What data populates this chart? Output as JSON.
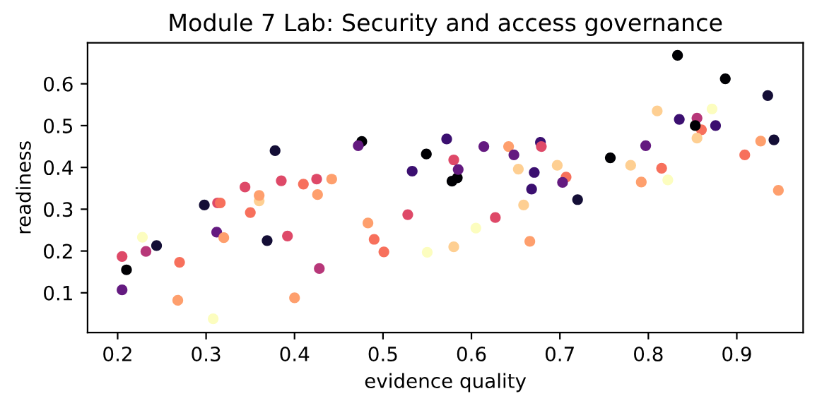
{
  "chart_data": {
    "type": "scatter",
    "title": "Module 7 Lab: Security and access governance",
    "xlabel": "evidence quality",
    "ylabel": "readiness",
    "xlim": [
      0.166,
      0.975
    ],
    "ylim": [
      0.005,
      0.698
    ],
    "xticks": [
      0.2,
      0.3,
      0.4,
      0.5,
      0.6,
      0.7,
      0.8,
      0.9
    ],
    "yticks": [
      0.1,
      0.2,
      0.3,
      0.4,
      0.5,
      0.6
    ],
    "grid": false,
    "marker": "circle",
    "x": [
      0.205,
      0.21,
      0.205,
      0.232,
      0.228,
      0.244,
      0.27,
      0.268,
      0.308,
      0.298,
      0.312,
      0.313,
      0.316,
      0.32,
      0.344,
      0.35,
      0.36,
      0.36,
      0.369,
      0.378,
      0.385,
      0.392,
      0.4,
      0.41,
      0.425,
      0.426,
      0.428,
      0.442,
      0.476,
      0.472,
      0.483,
      0.49,
      0.501,
      0.528,
      0.533,
      0.55,
      0.549,
      0.572,
      0.578,
      0.584,
      0.58,
      0.585,
      0.58,
      0.605,
      0.614,
      0.627,
      0.642,
      0.648,
      0.653,
      0.659,
      0.666,
      0.671,
      0.668,
      0.678,
      0.679,
      0.697,
      0.707,
      0.703,
      0.72,
      0.757,
      0.78,
      0.797,
      0.792,
      0.81,
      0.815,
      0.822,
      0.833,
      0.835,
      0.855,
      0.86,
      0.853,
      0.855,
      0.872,
      0.876,
      0.887,
      0.909,
      0.927,
      0.935,
      0.942,
      0.947
    ],
    "values": [
      0.107,
      0.155,
      0.187,
      0.199,
      0.233,
      0.213,
      0.173,
      0.082,
      0.038,
      0.31,
      0.245,
      0.315,
      0.315,
      0.232,
      0.353,
      0.292,
      0.32,
      0.333,
      0.225,
      0.44,
      0.368,
      0.236,
      0.088,
      0.36,
      0.372,
      0.335,
      0.158,
      0.372,
      0.462,
      0.452,
      0.267,
      0.228,
      0.198,
      0.287,
      0.391,
      0.197,
      0.432,
      0.468,
      0.367,
      0.375,
      0.418,
      0.395,
      0.21,
      0.255,
      0.45,
      0.28,
      0.45,
      0.43,
      0.396,
      0.31,
      0.223,
      0.388,
      0.348,
      0.46,
      0.45,
      0.405,
      0.377,
      0.364,
      0.323,
      0.423,
      0.405,
      0.452,
      0.365,
      0.535,
      0.398,
      0.37,
      0.668,
      0.515,
      0.518,
      0.49,
      0.5,
      0.47,
      0.54,
      0.5,
      0.612,
      0.43,
      0.463,
      0.572,
      0.466,
      0.345
    ],
    "colors": [
      "#641a80",
      "#000004",
      "#de4968",
      "#b73779",
      "#fcfdbf",
      "#140e36",
      "#f7705c",
      "#fe9f6d",
      "#fcfdbf",
      "#140e36",
      "#641a80",
      "#de4968",
      "#f7705c",
      "#fe9f6d",
      "#de4968",
      "#f7705c",
      "#fecf92",
      "#fe9f6d",
      "#140e36",
      "#140e36",
      "#de4968",
      "#de4968",
      "#fe9f6d",
      "#f7705c",
      "#de4968",
      "#fe9f6d",
      "#b73779",
      "#fe9f6d",
      "#000004",
      "#641a80",
      "#fe9f6d",
      "#f7705c",
      "#f7705c",
      "#de4968",
      "#3b0f70",
      "#fcfdbf",
      "#000004",
      "#3b0f70",
      "#000004",
      "#000004",
      "#de4968",
      "#641a80",
      "#fecf92",
      "#fcfdbf",
      "#641a80",
      "#de4968",
      "#fe9f6d",
      "#641a80",
      "#fecf92",
      "#fecf92",
      "#fe9f6d",
      "#3b0f70",
      "#3b0f70",
      "#3b0f70",
      "#de4968",
      "#fecf92",
      "#f7705c",
      "#641a80",
      "#140e36",
      "#000004",
      "#fecf92",
      "#641a80",
      "#fe9f6d",
      "#fecf92",
      "#f7705c",
      "#fcfdbf",
      "#000004",
      "#3b0f70",
      "#b73779",
      "#f7705c",
      "#000004",
      "#fecf92",
      "#fcfdbf",
      "#3b0f70",
      "#000004",
      "#f7705c",
      "#fe9f6d",
      "#140e36",
      "#140e36",
      "#fe9f6d"
    ]
  }
}
